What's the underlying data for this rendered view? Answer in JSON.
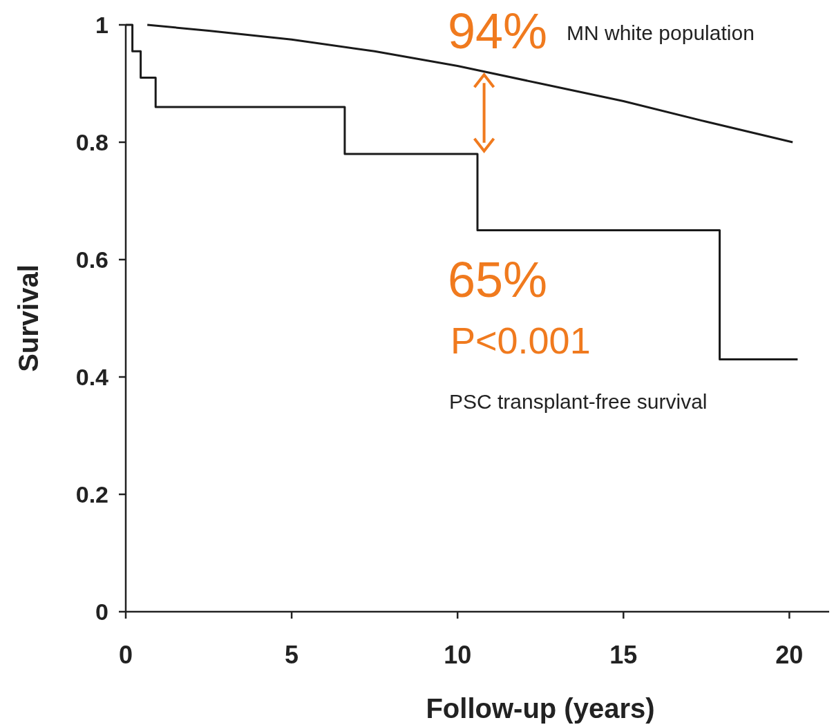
{
  "chart_data": {
    "type": "line",
    "xlabel": "Follow-up (years)",
    "ylabel": "Survival",
    "xlim": [
      0,
      21.2
    ],
    "ylim": [
      0,
      1
    ],
    "xticks": [
      0,
      5,
      10,
      15,
      20
    ],
    "yticks": [
      0,
      0.2,
      0.4,
      0.6,
      0.8,
      1
    ],
    "grid": false,
    "marker": "none",
    "line_style": "solid",
    "series": [
      {
        "name": "MN white population",
        "color": "#1a1a1a",
        "x": [
          0.65,
          2.5,
          5,
          7.5,
          10,
          12.5,
          15,
          17.5,
          20.1
        ],
        "values": [
          1.0,
          0.99,
          0.975,
          0.955,
          0.93,
          0.9,
          0.87,
          0.835,
          0.8
        ]
      },
      {
        "name": "PSC transplant-free survival",
        "type": "step",
        "color": "#1a1a1a",
        "x": [
          0,
          0.2,
          0.45,
          0.9,
          6.6,
          10.6,
          17.9,
          20.25
        ],
        "values": [
          1,
          0.955,
          0.91,
          0.86,
          0.78,
          0.65,
          0.43,
          0.43
        ]
      }
    ],
    "annotations": [
      "94%",
      "65%",
      "P<0.001"
    ]
  }
}
